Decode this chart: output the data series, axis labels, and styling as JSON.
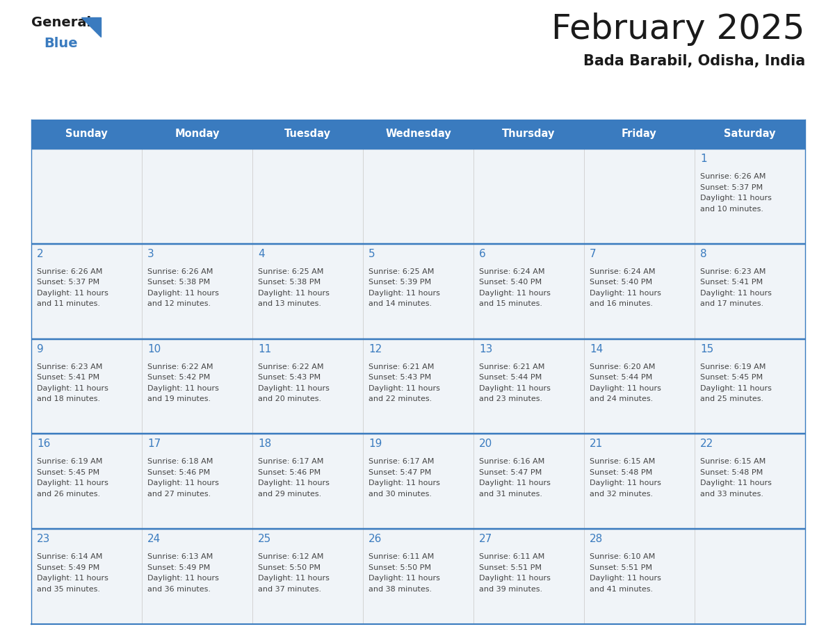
{
  "title": "February 2025",
  "subtitle": "Bada Barabil, Odisha, India",
  "days_of_week": [
    "Sunday",
    "Monday",
    "Tuesday",
    "Wednesday",
    "Thursday",
    "Friday",
    "Saturday"
  ],
  "header_bg": "#3a7bbf",
  "header_text": "#ffffff",
  "cell_bg": "#f0f4f8",
  "border_color": "#3a7bbf",
  "day_number_color": "#3a7bbf",
  "text_color": "#444444",
  "logo_black": "#1a1a1a",
  "logo_blue": "#3a7bbf",
  "calendar_data": [
    [
      {
        "day": null,
        "sunrise": null,
        "sunset": null,
        "daylight_min": null
      },
      {
        "day": null,
        "sunrise": null,
        "sunset": null,
        "daylight_min": null
      },
      {
        "day": null,
        "sunrise": null,
        "sunset": null,
        "daylight_min": null
      },
      {
        "day": null,
        "sunrise": null,
        "sunset": null,
        "daylight_min": null
      },
      {
        "day": null,
        "sunrise": null,
        "sunset": null,
        "daylight_min": null
      },
      {
        "day": null,
        "sunrise": null,
        "sunset": null,
        "daylight_min": null
      },
      {
        "day": 1,
        "sunrise": "6:26 AM",
        "sunset": "5:37 PM",
        "daylight_min": "10 minutes."
      }
    ],
    [
      {
        "day": 2,
        "sunrise": "6:26 AM",
        "sunset": "5:37 PM",
        "daylight_min": "11 minutes."
      },
      {
        "day": 3,
        "sunrise": "6:26 AM",
        "sunset": "5:38 PM",
        "daylight_min": "12 minutes."
      },
      {
        "day": 4,
        "sunrise": "6:25 AM",
        "sunset": "5:38 PM",
        "daylight_min": "13 minutes."
      },
      {
        "day": 5,
        "sunrise": "6:25 AM",
        "sunset": "5:39 PM",
        "daylight_min": "14 minutes."
      },
      {
        "day": 6,
        "sunrise": "6:24 AM",
        "sunset": "5:40 PM",
        "daylight_min": "15 minutes."
      },
      {
        "day": 7,
        "sunrise": "6:24 AM",
        "sunset": "5:40 PM",
        "daylight_min": "16 minutes."
      },
      {
        "day": 8,
        "sunrise": "6:23 AM",
        "sunset": "5:41 PM",
        "daylight_min": "17 minutes."
      }
    ],
    [
      {
        "day": 9,
        "sunrise": "6:23 AM",
        "sunset": "5:41 PM",
        "daylight_min": "18 minutes."
      },
      {
        "day": 10,
        "sunrise": "6:22 AM",
        "sunset": "5:42 PM",
        "daylight_min": "19 minutes."
      },
      {
        "day": 11,
        "sunrise": "6:22 AM",
        "sunset": "5:43 PM",
        "daylight_min": "20 minutes."
      },
      {
        "day": 12,
        "sunrise": "6:21 AM",
        "sunset": "5:43 PM",
        "daylight_min": "22 minutes."
      },
      {
        "day": 13,
        "sunrise": "6:21 AM",
        "sunset": "5:44 PM",
        "daylight_min": "23 minutes."
      },
      {
        "day": 14,
        "sunrise": "6:20 AM",
        "sunset": "5:44 PM",
        "daylight_min": "24 minutes."
      },
      {
        "day": 15,
        "sunrise": "6:19 AM",
        "sunset": "5:45 PM",
        "daylight_min": "25 minutes."
      }
    ],
    [
      {
        "day": 16,
        "sunrise": "6:19 AM",
        "sunset": "5:45 PM",
        "daylight_min": "26 minutes."
      },
      {
        "day": 17,
        "sunrise": "6:18 AM",
        "sunset": "5:46 PM",
        "daylight_min": "27 minutes."
      },
      {
        "day": 18,
        "sunrise": "6:17 AM",
        "sunset": "5:46 PM",
        "daylight_min": "29 minutes."
      },
      {
        "day": 19,
        "sunrise": "6:17 AM",
        "sunset": "5:47 PM",
        "daylight_min": "30 minutes."
      },
      {
        "day": 20,
        "sunrise": "6:16 AM",
        "sunset": "5:47 PM",
        "daylight_min": "31 minutes."
      },
      {
        "day": 21,
        "sunrise": "6:15 AM",
        "sunset": "5:48 PM",
        "daylight_min": "32 minutes."
      },
      {
        "day": 22,
        "sunrise": "6:15 AM",
        "sunset": "5:48 PM",
        "daylight_min": "33 minutes."
      }
    ],
    [
      {
        "day": 23,
        "sunrise": "6:14 AM",
        "sunset": "5:49 PM",
        "daylight_min": "35 minutes."
      },
      {
        "day": 24,
        "sunrise": "6:13 AM",
        "sunset": "5:49 PM",
        "daylight_min": "36 minutes."
      },
      {
        "day": 25,
        "sunrise": "6:12 AM",
        "sunset": "5:50 PM",
        "daylight_min": "37 minutes."
      },
      {
        "day": 26,
        "sunrise": "6:11 AM",
        "sunset": "5:50 PM",
        "daylight_min": "38 minutes."
      },
      {
        "day": 27,
        "sunrise": "6:11 AM",
        "sunset": "5:51 PM",
        "daylight_min": "39 minutes."
      },
      {
        "day": 28,
        "sunrise": "6:10 AM",
        "sunset": "5:51 PM",
        "daylight_min": "41 minutes."
      },
      {
        "day": null,
        "sunrise": null,
        "sunset": null,
        "daylight_min": null
      }
    ]
  ]
}
